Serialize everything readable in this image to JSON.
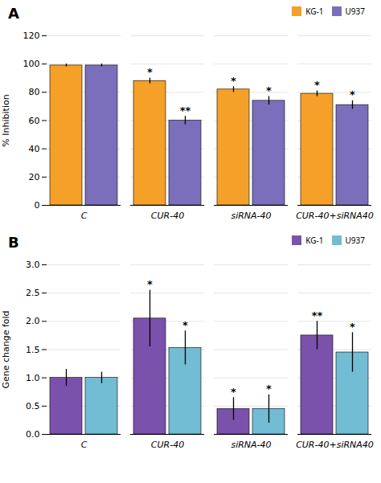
{
  "chart_data": [
    {
      "type": "bar",
      "title": "A",
      "categories": [
        "C",
        "CUR-40",
        "siRNA-40",
        "CUR-40+siRNA40"
      ],
      "series": [
        {
          "name": "KG-1",
          "color": "#F4A029",
          "values": [
            99,
            88,
            82,
            79
          ],
          "errors": [
            1,
            2,
            2,
            2
          ],
          "significance": [
            null,
            "*",
            "*",
            "*"
          ]
        },
        {
          "name": "U937",
          "color": "#7B6FBC",
          "values": [
            99,
            60,
            74,
            71
          ],
          "errors": [
            1,
            3,
            3,
            3
          ],
          "significance": [
            null,
            "**",
            "*",
            "*"
          ]
        }
      ],
      "ylabel": "% Inhibition",
      "ylim": [
        0,
        120
      ],
      "yticks": [
        0,
        20,
        40,
        60,
        80,
        100,
        120
      ],
      "grid": true,
      "legend": "upper right"
    },
    {
      "type": "bar",
      "title": "B",
      "categories": [
        "C",
        "CUR-40",
        "siRNA-40",
        "CUR-40+siRNA40"
      ],
      "series": [
        {
          "name": "KG-1",
          "color": "#7B52AB",
          "values": [
            1.0,
            2.05,
            0.45,
            1.75
          ],
          "errors": [
            0.15,
            0.5,
            0.2,
            0.25
          ],
          "significance": [
            null,
            "*",
            "*",
            "**"
          ]
        },
        {
          "name": "U937",
          "color": "#72BCD4",
          "values": [
            1.0,
            1.53,
            0.45,
            1.45
          ],
          "errors": [
            0.1,
            0.3,
            0.25,
            0.35
          ],
          "significance": [
            null,
            "*",
            "*",
            "*"
          ]
        }
      ],
      "ylabel": "Gene change fold",
      "ylim": [
        0,
        3
      ],
      "yticks": [
        {
          "value": 0,
          "label": "0.0"
        },
        0.5,
        {
          "value": 1.0,
          "label": "1.0"
        },
        1.5,
        {
          "value": 2.0,
          "label": "2.0"
        },
        2.5,
        {
          "value": 3.0,
          "label": "3.0"
        }
      ],
      "grid": true,
      "legend": "upper right"
    }
  ]
}
